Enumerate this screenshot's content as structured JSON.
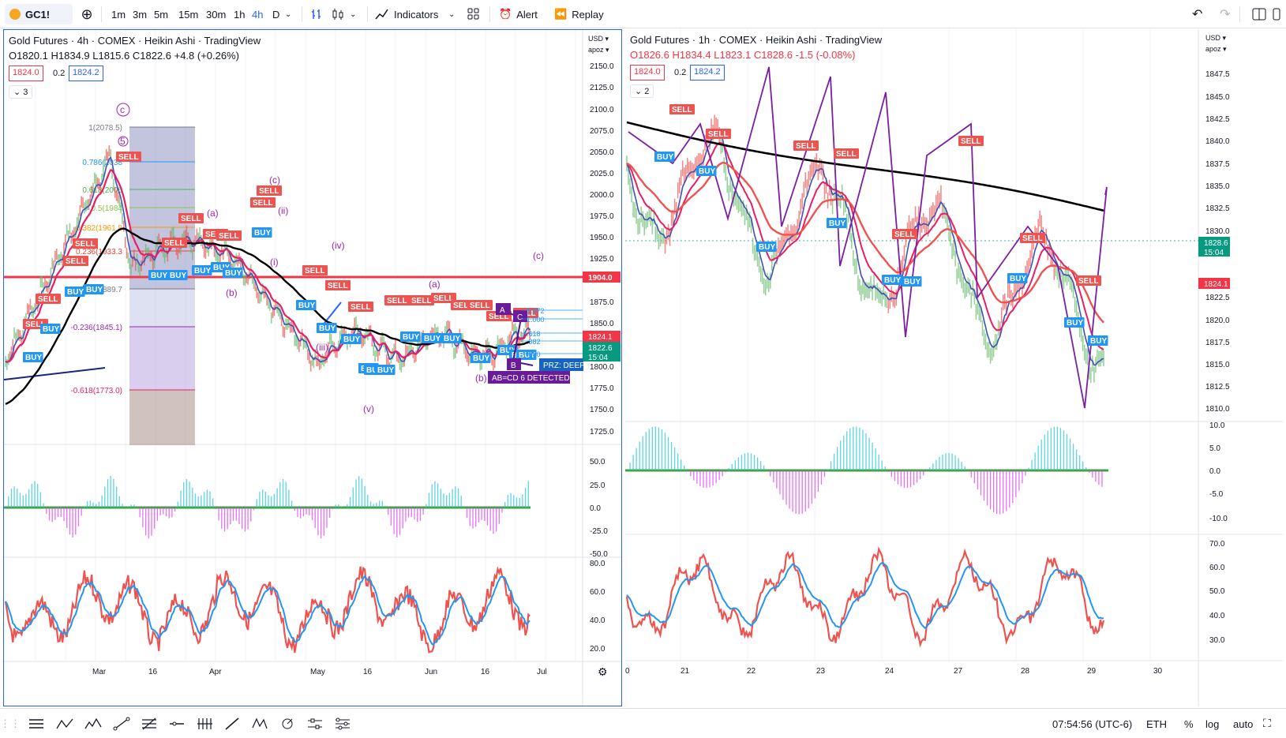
{
  "toolbar": {
    "symbol": "GC1!",
    "intervals": [
      "1m",
      "3m",
      "5m",
      "15m",
      "30m",
      "1h",
      "4h",
      "D"
    ],
    "active_interval": "4h",
    "indicators_label": "Indicators",
    "alert_label": "Alert",
    "replay_label": "Replay"
  },
  "left": {
    "title": "Gold Futures · 4h · COMEX · Heikin Ashi · TradingView",
    "ohlc": "O1820.1 H1834.9 L1815.6 C1822.6 +4.8 (+0.26%)",
    "bid": "1824.0",
    "spread": "0.2",
    "ask": "1824.2",
    "collapse": "3",
    "currency": "USD",
    "scale_mode": "apoz",
    "price_ticks": [
      "2150.0",
      "2125.0",
      "2100.0",
      "2075.0",
      "2050.0",
      "2025.0",
      "2000.0",
      "1975.0",
      "1950.0",
      "1925.0",
      "1904.0",
      "1875.0",
      "1850.0",
      "1824.1",
      "1822.6",
      "15:04",
      "1800.0",
      "1775.0",
      "1750.0",
      "1725.0"
    ],
    "osc_ticks": [
      "50.0",
      "25.0",
      "0.0",
      "-25.0",
      "-50.0"
    ],
    "rsi_ticks": [
      "80.0",
      "60.0",
      "40.0",
      "20.0"
    ],
    "time_ticks": [
      "Mar",
      "16",
      "Apr",
      "16",
      "May",
      "16",
      "Jun",
      "16",
      "Jul"
    ],
    "fib_labels": [
      "1(2078.5)",
      "0.786(2038",
      "0.618(2006",
      "0.5(1984",
      "0.382(1961.8",
      "0.236(1933.3",
      "0(1889.7",
      "-0.236(1845.1)",
      "-0.618(1773.0)"
    ],
    "wave_labels": [
      "c",
      "5",
      "(c)",
      "(a)",
      "(ii)",
      "(i)",
      "(iv)",
      "(b)",
      "(iii)",
      "(v)",
      "(a)",
      "(b)",
      "(c)"
    ],
    "harmonic": {
      "a": "A",
      "b": "B",
      "c": "C",
      "text": "AB=CD 6 DETECTED",
      "prz": "PRZ: DEEP"
    },
    "fib_right": [
      "1.272",
      "1.000",
      ".618",
      ".382",
      ".000"
    ],
    "signals": [
      "SELL",
      "BUY"
    ]
  },
  "right": {
    "title": "Gold Futures · 1h · COMEX · Heikin Ashi · TradingView",
    "ohlc": "O1826.6 H1834.4 L1823.1 C1828.6 -1.5 (-0.08%)",
    "bid": "1824.0",
    "spread": "0.2",
    "ask": "1824.2",
    "collapse": "2",
    "currency": "USD",
    "scale_mode": "apoz",
    "price_ticks": [
      "1847.5",
      "1845.0",
      "1842.5",
      "1840.0",
      "1837.5",
      "1835.0",
      "1832.5",
      "1830.0",
      "1828.6",
      "15:04",
      "1824.1",
      "1822.5",
      "1820.0",
      "1817.5",
      "1815.0",
      "1812.5",
      "1810.0"
    ],
    "osc_ticks": [
      "10.0",
      "5.0",
      "0.0",
      "-5.0",
      "-10.0"
    ],
    "rsi_ticks": [
      "70.0",
      "60.0",
      "50.0",
      "40.0",
      "30.0"
    ],
    "time_ticks": [
      "0",
      "21",
      "22",
      "23",
      "24",
      "27",
      "28",
      "29",
      "30"
    ]
  },
  "status": {
    "clock": "07:54:56 (UTC-6)",
    "session": "ETH",
    "pct": "%",
    "log": "log",
    "auto": "auto"
  },
  "colors": {
    "accent": "#2962ff",
    "up": "#089981",
    "down": "#f23645",
    "sell": "#ef5350",
    "buy": "#2196f3",
    "purple": "#9c27b0"
  }
}
